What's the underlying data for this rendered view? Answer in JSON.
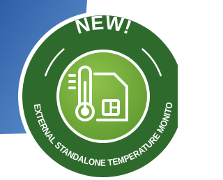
{
  "badge": {
    "headline": "NEW!",
    "caption": "EXTERNAL STANDALONE TEMPERATURE MONITORING"
  }
}
